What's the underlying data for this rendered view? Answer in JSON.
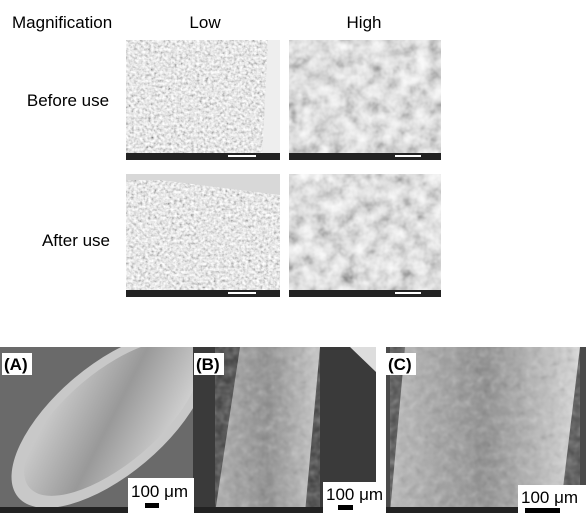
{
  "header": {
    "magnification": "Magnification",
    "columns": [
      "Low",
      "High"
    ]
  },
  "rows": [
    "Before use",
    "After use"
  ],
  "panels": [
    {
      "label": "(A)",
      "scale": "100 μm"
    },
    {
      "label": "(B)",
      "scale": "100 μm"
    },
    {
      "label": "(C)",
      "scale": "100 μm"
    }
  ]
}
